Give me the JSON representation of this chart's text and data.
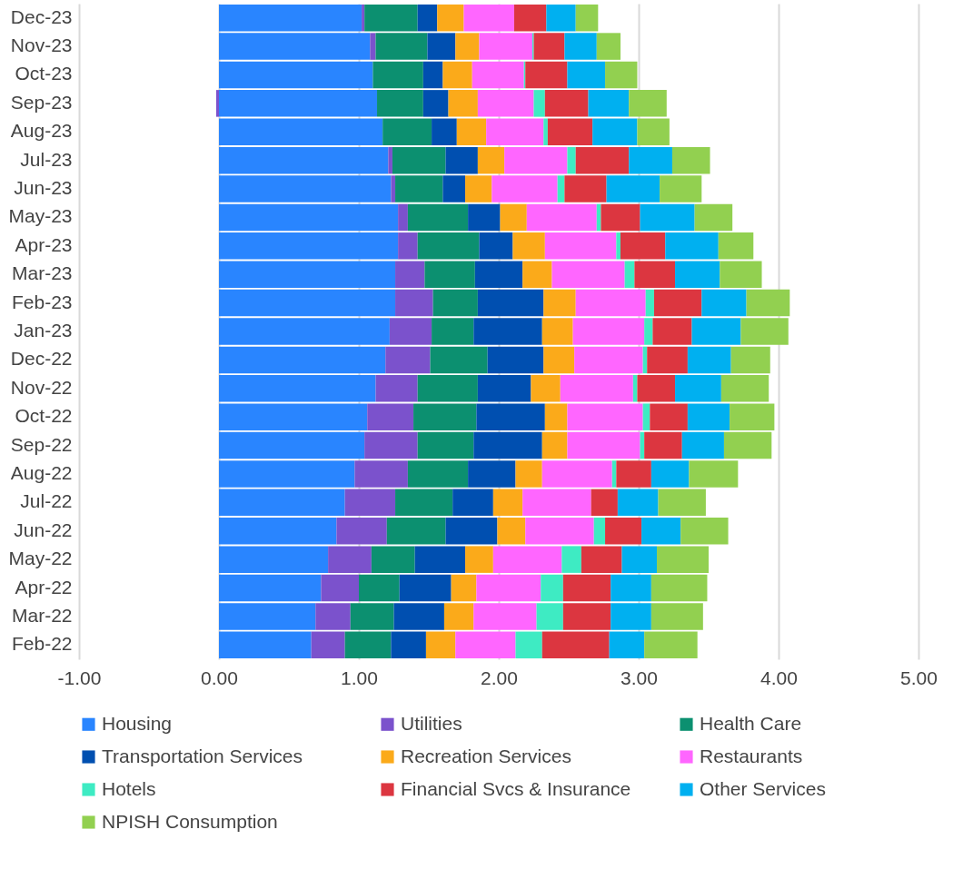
{
  "chart_data": {
    "type": "bar",
    "orientation": "horizontal",
    "stacked": true,
    "categories": [
      "Dec-23",
      "Nov-23",
      "Oct-23",
      "Sep-23",
      "Aug-23",
      "Jul-23",
      "Jun-23",
      "May-23",
      "Apr-23",
      "Mar-23",
      "Feb-23",
      "Jan-23",
      "Dec-22",
      "Nov-22",
      "Oct-22",
      "Sep-22",
      "Aug-22",
      "Jul-22",
      "Jun-22",
      "May-22",
      "Apr-22",
      "Mar-22",
      "Feb-22"
    ],
    "series": [
      {
        "name": "Housing",
        "color": "#2985ff",
        "values": [
          1.02,
          1.08,
          1.1,
          1.13,
          1.17,
          1.21,
          1.23,
          1.28,
          1.28,
          1.26,
          1.26,
          1.22,
          1.19,
          1.12,
          1.06,
          1.04,
          0.97,
          0.9,
          0.84,
          0.78,
          0.73,
          0.69,
          0.66
        ]
      },
      {
        "name": "Utilities",
        "color": "#7b52cc",
        "values": [
          0.02,
          0.04,
          0,
          -0.02,
          0,
          0.03,
          0.03,
          0.07,
          0.14,
          0.21,
          0.27,
          0.3,
          0.32,
          0.3,
          0.33,
          0.38,
          0.38,
          0.36,
          0.36,
          0.31,
          0.27,
          0.25,
          0.24
        ]
      },
      {
        "name": "Health Care",
        "color": "#0c9070",
        "values": [
          0.38,
          0.37,
          0.36,
          0.33,
          0.35,
          0.38,
          0.34,
          0.43,
          0.44,
          0.36,
          0.32,
          0.3,
          0.41,
          0.43,
          0.45,
          0.4,
          0.43,
          0.41,
          0.42,
          0.31,
          0.29,
          0.31,
          0.33
        ]
      },
      {
        "name": "Transportation Services",
        "color": "#004fb0",
        "values": [
          0.14,
          0.2,
          0.14,
          0.18,
          0.18,
          0.23,
          0.16,
          0.23,
          0.24,
          0.34,
          0.47,
          0.49,
          0.4,
          0.38,
          0.49,
          0.49,
          0.34,
          0.29,
          0.37,
          0.36,
          0.37,
          0.36,
          0.25
        ]
      },
      {
        "name": "Recreation Services",
        "color": "#fbaa1a",
        "values": [
          0.19,
          0.17,
          0.21,
          0.21,
          0.21,
          0.19,
          0.19,
          0.19,
          0.23,
          0.21,
          0.23,
          0.22,
          0.22,
          0.21,
          0.16,
          0.18,
          0.19,
          0.21,
          0.2,
          0.2,
          0.18,
          0.21,
          0.21
        ]
      },
      {
        "name": "Restaurants",
        "color": "#ff66ff",
        "values": [
          0.36,
          0.38,
          0.37,
          0.4,
          0.41,
          0.45,
          0.47,
          0.5,
          0.51,
          0.52,
          0.5,
          0.51,
          0.49,
          0.52,
          0.54,
          0.52,
          0.5,
          0.49,
          0.49,
          0.49,
          0.46,
          0.45,
          0.43
        ]
      },
      {
        "name": "Hotels",
        "color": "#3eebc3",
        "values": [
          0,
          0.01,
          0.01,
          0.08,
          0.03,
          0.06,
          0.05,
          0.03,
          0.03,
          0.07,
          0.06,
          0.06,
          0.03,
          0.03,
          0.05,
          0.03,
          0.03,
          0,
          0.08,
          0.14,
          0.16,
          0.19,
          0.19
        ]
      },
      {
        "name": "Financial Svcs & Insurance",
        "color": "#dc3640",
        "values": [
          0.23,
          0.22,
          0.3,
          0.31,
          0.32,
          0.38,
          0.3,
          0.28,
          0.32,
          0.29,
          0.34,
          0.28,
          0.29,
          0.27,
          0.27,
          0.27,
          0.25,
          0.19,
          0.26,
          0.29,
          0.34,
          0.34,
          0.48
        ]
      },
      {
        "name": "Other Services",
        "color": "#00b0f0",
        "values": [
          0.21,
          0.23,
          0.27,
          0.29,
          0.32,
          0.31,
          0.38,
          0.39,
          0.38,
          0.32,
          0.32,
          0.35,
          0.31,
          0.33,
          0.3,
          0.3,
          0.27,
          0.29,
          0.28,
          0.25,
          0.29,
          0.29,
          0.25
        ]
      },
      {
        "name": "NPISH Consumption",
        "color": "#92d050",
        "values": [
          0.16,
          0.17,
          0.23,
          0.27,
          0.23,
          0.27,
          0.3,
          0.27,
          0.25,
          0.3,
          0.31,
          0.34,
          0.28,
          0.34,
          0.32,
          0.34,
          0.35,
          0.34,
          0.34,
          0.37,
          0.4,
          0.37,
          0.38
        ]
      }
    ],
    "xlim": [
      -1,
      5
    ],
    "xticks": [
      {
        "value": -1,
        "label": "-1.00"
      },
      {
        "value": 0,
        "label": "0.00"
      },
      {
        "value": 1,
        "label": "1.00"
      },
      {
        "value": 2,
        "label": "2.00"
      },
      {
        "value": 3,
        "label": "3.00"
      },
      {
        "value": 4,
        "label": "4.00"
      },
      {
        "value": 5,
        "label": "5.00"
      }
    ],
    "grid": "x",
    "legend": "bottom"
  }
}
